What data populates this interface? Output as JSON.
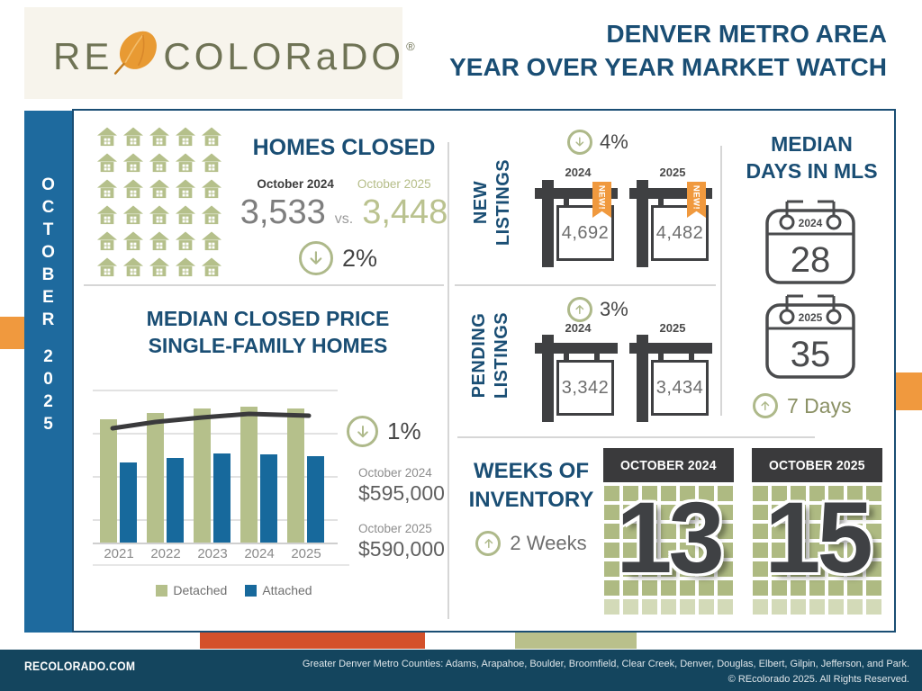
{
  "header": {
    "logo_prefix": "RE",
    "logo_suffix": "COLORaDO",
    "logo_reg": "®",
    "title_line1": "DENVER METRO AREA",
    "title_line2": "YEAR OVER YEAR MARKET WATCH"
  },
  "sidebar": {
    "month": "OCTOBER",
    "year": "2025"
  },
  "homes_closed": {
    "title": "HOMES CLOSED",
    "icon_count": 30,
    "prev_label": "October 2024",
    "curr_label": "October 2025",
    "prev_value": "3,533",
    "vs_label": "vs.",
    "curr_value": "3,448",
    "change": "2%",
    "direction": "down"
  },
  "median_price": {
    "title_line1": "MEDIAN CLOSED PRICE",
    "title_line2": "SINGLE-FAMILY HOMES",
    "change": "1%",
    "direction": "down",
    "prev_label": "October 2024",
    "prev_value": "$595,000",
    "curr_label": "October 2025",
    "curr_value": "$590,000"
  },
  "chart_data": {
    "type": "bar",
    "title": "Median Closed Price Single-Family Homes",
    "categories": [
      "2021",
      "2022",
      "2023",
      "2024",
      "2025"
    ],
    "series": [
      {
        "name": "Detached",
        "color": "#b5c08b",
        "values": [
          540000,
          570000,
          588000,
          595000,
          590000
        ]
      },
      {
        "name": "Attached",
        "color": "#17699c",
        "values": [
          350000,
          372000,
          392000,
          388000,
          381000
        ]
      }
    ],
    "trend_line": {
      "color": "#3a3a3c",
      "rel_values": [
        0.74,
        0.78,
        0.81,
        0.83,
        0.82
      ]
    },
    "ylim": [
      0,
      680000
    ],
    "gridlines": true,
    "legend_position": "bottom",
    "annotations": {
      "yoy_change": "-1%",
      "october_2024": "$595,000",
      "october_2025": "$590,000"
    }
  },
  "new_listings": {
    "label_line1": "NEW",
    "label_line2": "LISTINGS",
    "change": "4%",
    "direction": "down",
    "badge": "NEW!",
    "items": [
      {
        "year": "2024",
        "value": "4,692"
      },
      {
        "year": "2025",
        "value": "4,482"
      }
    ]
  },
  "pending_listings": {
    "label_line1": "PENDING",
    "label_line2": "LISTINGS",
    "change": "3%",
    "direction": "up",
    "items": [
      {
        "year": "2024",
        "value": "3,342"
      },
      {
        "year": "2025",
        "value": "3,434"
      }
    ]
  },
  "median_days": {
    "title_line1": "MEDIAN",
    "title_line2": "DAYS IN MLS",
    "change": "7 Days",
    "direction": "up",
    "items": [
      {
        "year": "2024",
        "value": "28"
      },
      {
        "year": "2025",
        "value": "35"
      }
    ]
  },
  "weeks_inventory": {
    "title_line1": "WEEKS OF",
    "title_line2": "INVENTORY",
    "change": "2 Weeks",
    "direction": "up",
    "items": [
      {
        "label": "OCTOBER 2024",
        "value": "13"
      },
      {
        "label": "OCTOBER 2025",
        "value": "15"
      }
    ]
  },
  "footer": {
    "site": "RECOLORADO.COM",
    "counties": "Greater Denver Metro Counties: Adams, Arapahoe, Boulder, Broomfield, Clear Creek, Denver, Douglas, Elbert, Gilpin, Jefferson, and Park.",
    "copyright": "© REcolorado 2025. All Rights Reserved."
  },
  "colors": {
    "navy": "#1a4e74",
    "sidebar_blue": "#1e6a9e",
    "olive": "#b5c08b",
    "olive_badge": "#aeb98a",
    "bar_blue": "#17699c",
    "orange": "#f0993e",
    "orange_red": "#d4512b",
    "footer_navy": "#14455e",
    "dark_gray": "#3f4042",
    "cream": "#f7f4ec"
  }
}
